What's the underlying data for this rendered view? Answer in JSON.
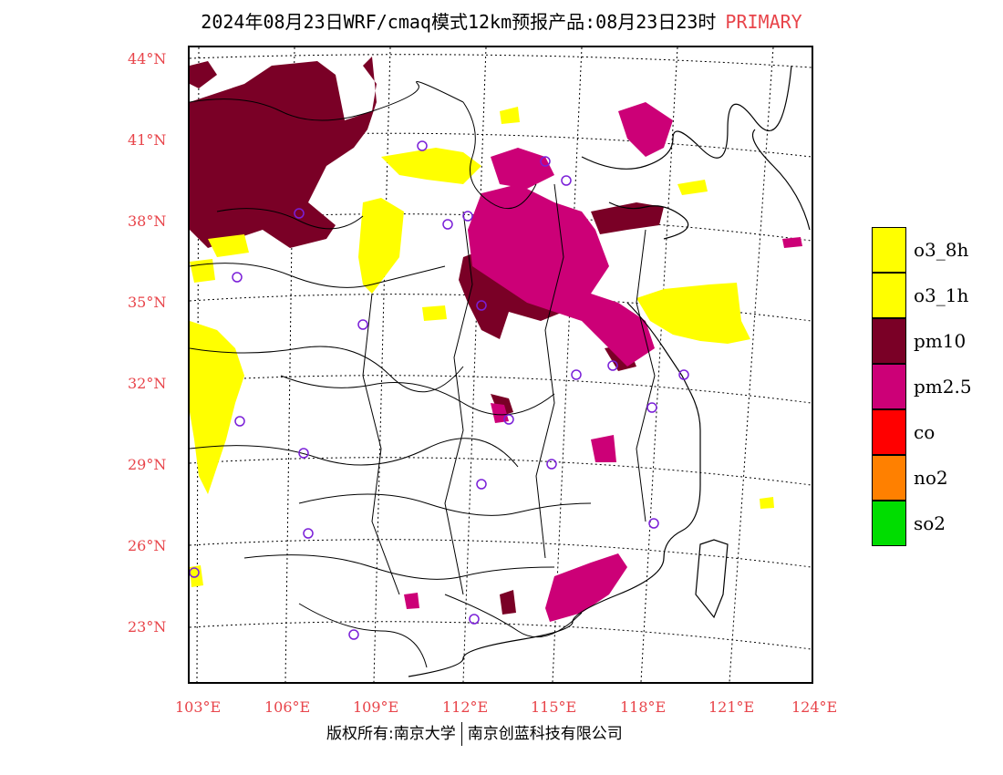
{
  "title": {
    "main": "2024年08月23日WRF/cmaq模式12km预报产品:08月23日23时",
    "tag": "PRIMARY"
  },
  "latitude_labels": [
    "44°N",
    "41°N",
    "38°N",
    "35°N",
    "32°N",
    "29°N",
    "26°N",
    "23°N"
  ],
  "longitude_labels": [
    "103°E",
    "106°E",
    "109°E",
    "112°E",
    "115°E",
    "118°E",
    "121°E",
    "124°E"
  ],
  "legend": [
    {
      "label": "o3_8h",
      "color": "#ffff00"
    },
    {
      "label": "o3_1h",
      "color": "#ffff00"
    },
    {
      "label": "pm10",
      "color": "#7a0026"
    },
    {
      "label": "pm2.5",
      "color": "#cc0077"
    },
    {
      "label": "co",
      "color": "#ff0000"
    },
    {
      "label": "no2",
      "color": "#ff8000"
    },
    {
      "label": "so2",
      "color": "#00dd00"
    }
  ],
  "footer": {
    "left": "版权所有:南京大学",
    "right": "南京创蓝科技有限公司"
  },
  "colors": {
    "axis_label": "#e8444a",
    "o3": "#ffff00",
    "pm10": "#7a0026",
    "pm25": "#cc0077",
    "station": "#7a1fd8"
  }
}
